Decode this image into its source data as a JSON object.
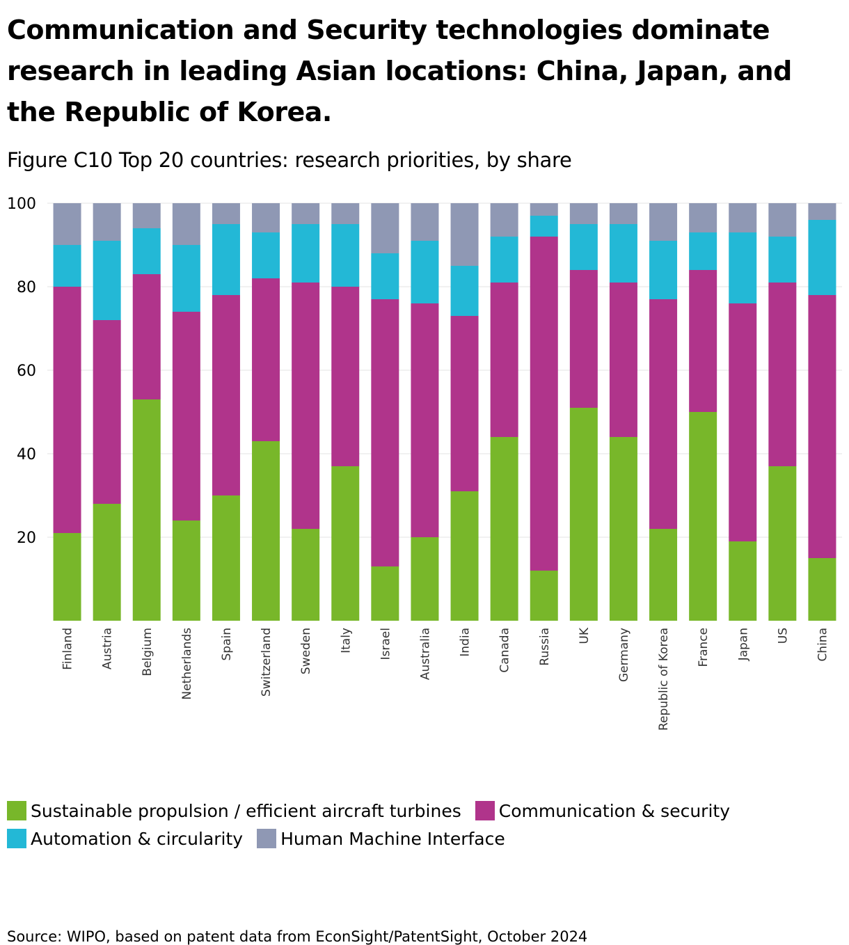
{
  "title": "Communication and Security technologies dominate research in leading Asian locations: China, Japan, and the Republic of Korea.",
  "subtitle": "Figure C10 Top 20 countries: research priorities, by share",
  "source": "Source: WIPO, based on patent data from EconSight/PatentSight, October 2024",
  "chart_data": {
    "type": "bar",
    "stacked": true,
    "title": "Figure C10 Top 20 countries: research priorities, by share",
    "xlabel": "",
    "ylabel": "",
    "ylim": [
      0,
      100
    ],
    "yticks": [
      20,
      40,
      60,
      80,
      100
    ],
    "grid": true,
    "legend_position": "bottom",
    "categories": [
      "Finland",
      "Austria",
      "Belgium",
      "Netherlands",
      "Spain",
      "Switzerland",
      "Sweden",
      "Italy",
      "Israel",
      "Australia",
      "India",
      "Canada",
      "Russia",
      "UK",
      "Germany",
      "Republic of Korea",
      "France",
      "Japan",
      "US",
      "China"
    ],
    "series": [
      {
        "name": "Sustainable propulsion / efficient aircraft turbines",
        "color": "#78b72a",
        "values": [
          21,
          28,
          53,
          24,
          30,
          43,
          22,
          37,
          13,
          20,
          31,
          44,
          12,
          51,
          44,
          22,
          50,
          19,
          37,
          15
        ]
      },
      {
        "name": "Communication & security",
        "color": "#b0348b",
        "values": [
          59,
          44,
          30,
          50,
          48,
          39,
          59,
          43,
          64,
          56,
          42,
          37,
          80,
          33,
          37,
          55,
          34,
          57,
          44,
          63
        ]
      },
      {
        "name": "Automation & circularity",
        "color": "#23b8d6",
        "values": [
          10,
          19,
          11,
          16,
          17,
          11,
          14,
          15,
          11,
          15,
          12,
          11,
          5,
          11,
          14,
          14,
          9,
          17,
          11,
          18
        ]
      },
      {
        "name": "Human Machine Interface",
        "color": "#8f98b4",
        "values": [
          10,
          9,
          6,
          10,
          5,
          7,
          5,
          5,
          12,
          9,
          15,
          8,
          3,
          5,
          5,
          9,
          7,
          7,
          8,
          4
        ]
      }
    ]
  }
}
